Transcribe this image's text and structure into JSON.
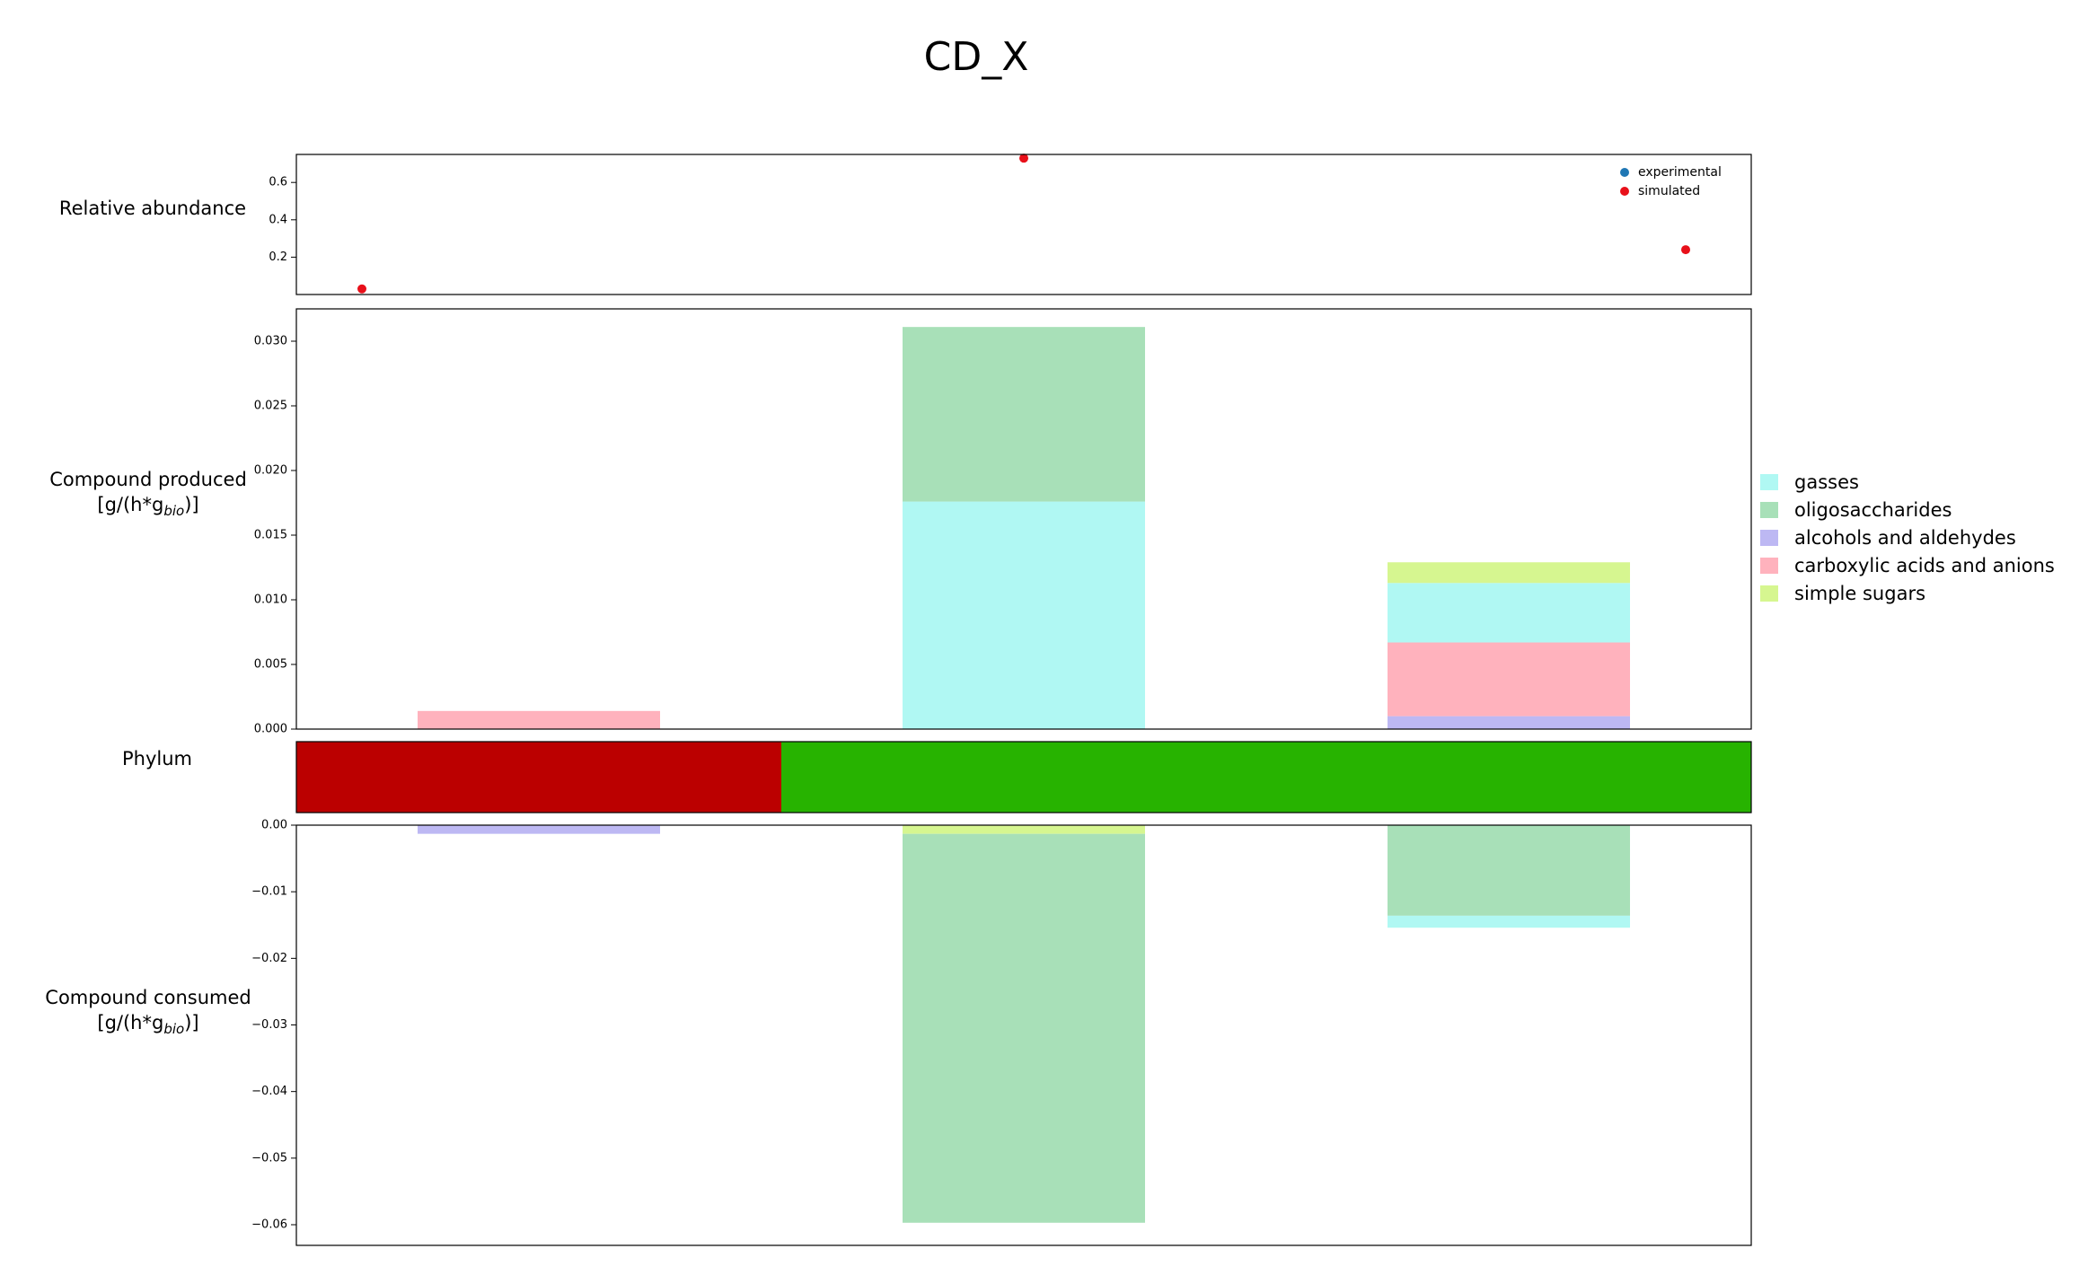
{
  "title": "CD_X",
  "row_labels": {
    "abundance": "Relative abundance",
    "produced_line1": "Compound produced",
    "produced_line2_prefix": "[g/(h*g",
    "produced_line2_sub": "bio",
    "produced_line2_suffix": ")]",
    "phylum": "Phylum",
    "consumed_line1": "Compound consumed",
    "consumed_line2_prefix": "[g/(h*g",
    "consumed_line2_sub": "bio",
    "consumed_line2_suffix": ")]"
  },
  "colors": {
    "gasses": "#b0f8f3",
    "oligosaccharides": "#a8e0b8",
    "alcohols and aldehydes": "#bdb8f3",
    "carboxylic acids and anions": "#ffb2bd",
    "simple sugars": "#d6f690",
    "experimental": "#1f77b4",
    "simulated": "#e8101a",
    "phylum_1": "#bb0000",
    "phylum_2": "#27b300"
  },
  "chart_data": [
    {
      "type": "scatter",
      "panel": "abundance",
      "ylim": [
        0,
        0.75
      ],
      "yticks": [
        "0.2",
        "0.4",
        "0.6"
      ],
      "ytick_values": [
        0.2,
        0.4,
        0.6
      ],
      "x": [
        0,
        1,
        2
      ],
      "legend": [
        "experimental",
        "simulated"
      ],
      "legend_position": "upper right",
      "series": [
        {
          "name": "experimental",
          "values": []
        },
        {
          "name": "simulated",
          "values": [
            0.03,
            0.73,
            0.24
          ]
        }
      ]
    },
    {
      "type": "bar",
      "panel": "produced",
      "stacked": true,
      "ylim": [
        0,
        0.0325
      ],
      "yticks": [
        "0.000",
        "0.005",
        "0.010",
        "0.015",
        "0.020",
        "0.025",
        "0.030"
      ],
      "ytick_values": [
        0,
        0.005,
        0.01,
        0.015,
        0.02,
        0.025,
        0.03
      ],
      "categories": [
        "0",
        "1",
        "2"
      ],
      "series": [
        {
          "name": "alcohols and aldehydes",
          "values": [
            0,
            0,
            0.001
          ]
        },
        {
          "name": "carboxylic acids and anions",
          "values": [
            0.0014,
            0,
            0.0057
          ]
        },
        {
          "name": "gasses",
          "values": [
            0,
            0.0176,
            0.0046
          ]
        },
        {
          "name": "oligosaccharides",
          "values": [
            0,
            0.0135,
            0
          ]
        },
        {
          "name": "simple sugars",
          "values": [
            0,
            0,
            0.0016
          ]
        }
      ]
    },
    {
      "type": "bar",
      "panel": "phylum",
      "segments": [
        {
          "from": 0,
          "to": 1,
          "color_key": "phylum_1"
        },
        {
          "from": 1,
          "to": 3,
          "color_key": "phylum_2"
        }
      ]
    },
    {
      "type": "bar",
      "panel": "consumed",
      "stacked": true,
      "ylim": [
        -0.0631,
        0
      ],
      "yticks": [
        "0.00",
        "−0.01",
        "−0.02",
        "−0.03",
        "−0.04",
        "−0.05",
        "−0.06"
      ],
      "ytick_values": [
        0,
        -0.01,
        -0.02,
        -0.03,
        -0.04,
        -0.05,
        -0.06
      ],
      "categories": [
        "0",
        "1",
        "2"
      ],
      "series": [
        {
          "name": "alcohols and aldehydes",
          "values": [
            -0.0013,
            0,
            0
          ]
        },
        {
          "name": "simple sugars",
          "values": [
            0,
            -0.0013,
            0
          ]
        },
        {
          "name": "oligosaccharides",
          "values": [
            0,
            -0.0584,
            -0.0136
          ]
        },
        {
          "name": "gasses",
          "values": [
            0,
            0,
            -0.0018
          ]
        }
      ]
    }
  ],
  "legend": {
    "entries": [
      "gasses",
      "oligosaccharides",
      "alcohols and aldehydes",
      "carboxylic acids and anions",
      "simple sugars"
    ]
  }
}
